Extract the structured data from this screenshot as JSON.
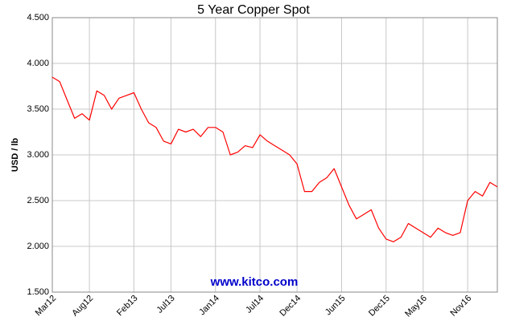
{
  "chart_data": {
    "type": "line",
    "title": "5 Year Copper Spot",
    "y_label": "USD / lb",
    "watermark": "www.kitco.com",
    "categories": [
      "Mar12",
      null,
      null,
      null,
      null,
      "Aug12",
      null,
      null,
      null,
      null,
      null,
      "Feb13",
      null,
      null,
      null,
      null,
      "Jul13",
      null,
      null,
      null,
      null,
      null,
      "Jan14",
      null,
      null,
      null,
      null,
      null,
      "Jul14",
      null,
      null,
      null,
      null,
      "Dec14",
      null,
      null,
      null,
      null,
      null,
      "Jun15",
      null,
      null,
      null,
      null,
      null,
      "Dec15",
      null,
      null,
      null,
      null,
      "May16",
      null,
      null,
      null,
      null,
      null,
      "Nov16",
      null,
      null,
      null,
      null
    ],
    "series": [
      {
        "name": "Copper",
        "color": "#ff0000",
        "values": [
          3.85,
          3.8,
          3.6,
          3.4,
          3.45,
          3.38,
          3.7,
          3.65,
          3.5,
          3.62,
          3.65,
          3.68,
          3.5,
          3.35,
          3.3,
          3.15,
          3.12,
          3.28,
          3.25,
          3.28,
          3.2,
          3.3,
          3.3,
          3.25,
          3.0,
          3.03,
          3.1,
          3.08,
          3.22,
          3.15,
          3.1,
          3.05,
          3.0,
          2.9,
          2.6,
          2.6,
          2.7,
          2.75,
          2.85,
          2.65,
          2.45,
          2.3,
          2.35,
          2.4,
          2.2,
          2.08,
          2.05,
          2.1,
          2.25,
          2.2,
          2.15,
          2.1,
          2.2,
          2.15,
          2.12,
          2.15,
          2.5,
          2.6,
          2.55,
          2.7,
          2.65
        ]
      }
    ],
    "ylim": [
      1.5,
      4.5
    ],
    "yticks": [
      {
        "value": 1.5,
        "label": "1.500"
      },
      {
        "value": 2.0,
        "label": "2.000"
      },
      {
        "value": 2.5,
        "label": "2.500"
      },
      {
        "value": 3.0,
        "label": "3.000"
      },
      {
        "value": 3.5,
        "label": "3.500"
      },
      {
        "value": 4.0,
        "label": "4.000"
      },
      {
        "value": 4.5,
        "label": "4.500"
      }
    ],
    "grid": true
  }
}
